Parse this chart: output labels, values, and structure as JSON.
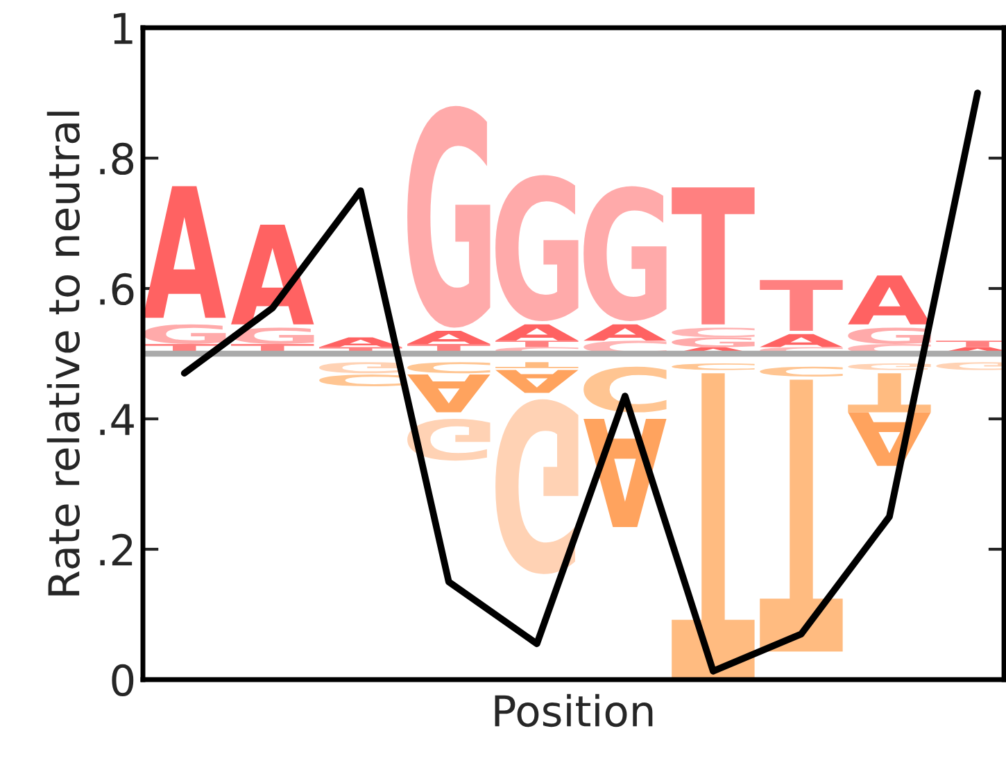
{
  "chart_data": {
    "type": "line",
    "xlabel": "Position",
    "ylabel": "Rate relative to neutral",
    "categories": [
      null,
      null,
      null,
      null,
      null,
      null,
      null,
      null,
      null,
      null
    ],
    "series": [
      {
        "color": "#000000",
        "values": [
          0.47,
          0.57,
          0.75,
          0.15,
          0.055,
          0.435,
          0.013,
          0.07,
          0.25,
          0.9
        ]
      }
    ],
    "ylim": [
      0,
      1
    ],
    "yticks": [
      0,
      {
        "value": 0.2,
        "label": ".2"
      },
      {
        "value": 0.4,
        "label": ".4"
      },
      {
        "value": 0.6,
        "label": ".6"
      },
      {
        "value": 0.8,
        "label": ".8"
      },
      1
    ],
    "ref_lines": [
      {
        "axis": "y",
        "value": 0.5,
        "color": "#aaaaaa"
      }
    ],
    "grid": false,
    "legend": false,
    "marker": "none",
    "line_style": "solid"
  }
}
